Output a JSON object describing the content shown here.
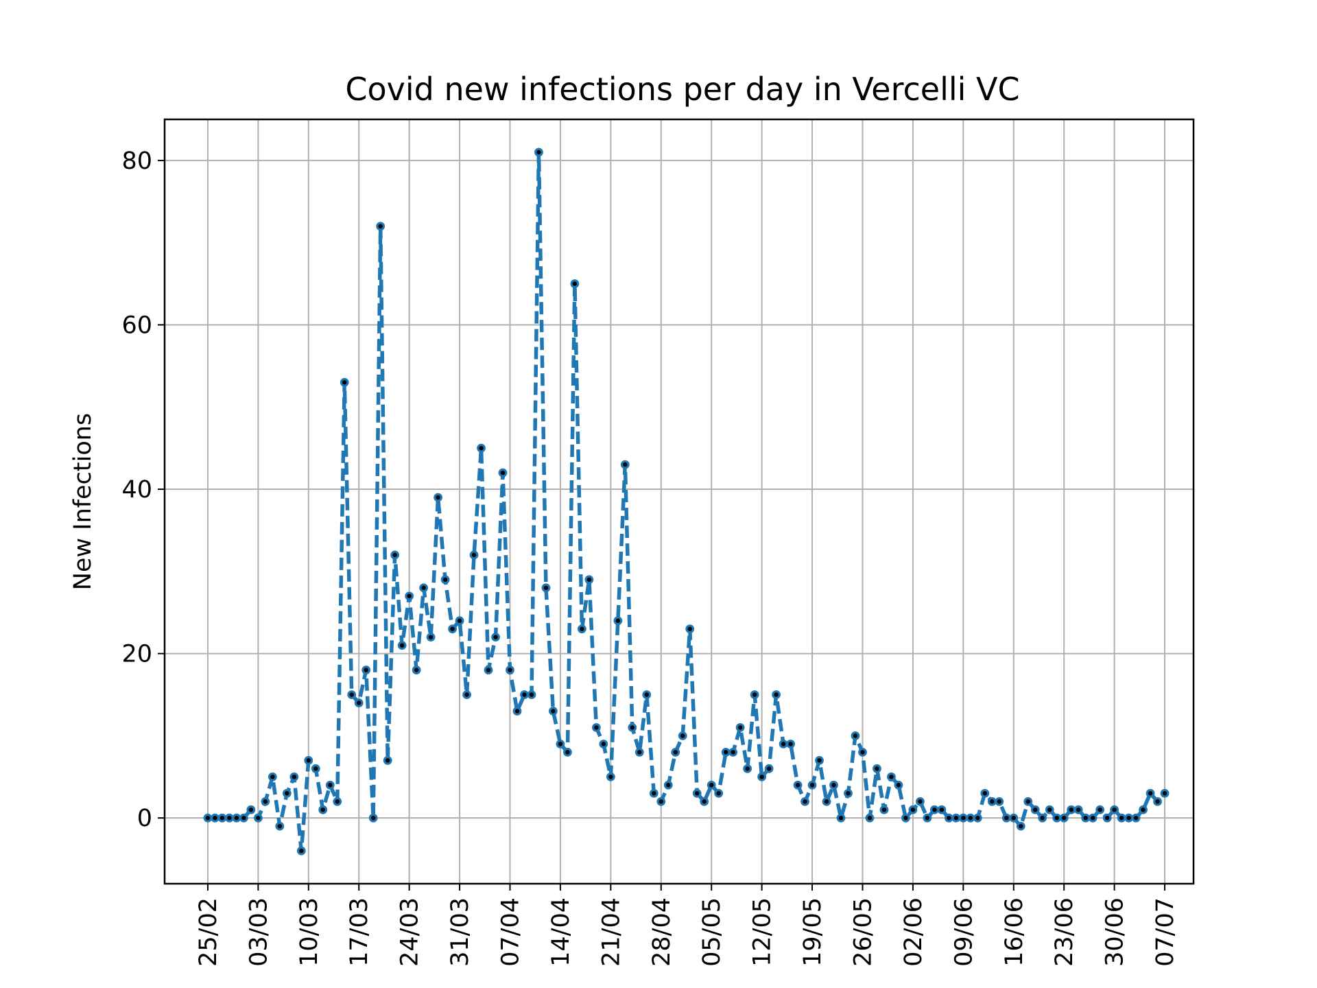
{
  "chart_data": {
    "type": "line",
    "title": "Covid new infections per day in Vercelli VC",
    "xlabel": "",
    "ylabel": "New Infections",
    "ylim": [
      -8,
      85
    ],
    "yticks": [
      0,
      20,
      40,
      60,
      80
    ],
    "xlim": [
      "2020-02-19",
      "2020-07-11"
    ],
    "xticks": [
      {
        "date": "2020-02-25",
        "label": "25/02"
      },
      {
        "date": "2020-03-03",
        "label": "03/03"
      },
      {
        "date": "2020-03-10",
        "label": "10/03"
      },
      {
        "date": "2020-03-17",
        "label": "17/03"
      },
      {
        "date": "2020-03-24",
        "label": "24/03"
      },
      {
        "date": "2020-03-31",
        "label": "31/03"
      },
      {
        "date": "2020-04-07",
        "label": "07/04"
      },
      {
        "date": "2020-04-14",
        "label": "14/04"
      },
      {
        "date": "2020-04-21",
        "label": "21/04"
      },
      {
        "date": "2020-04-28",
        "label": "28/04"
      },
      {
        "date": "2020-05-05",
        "label": "05/05"
      },
      {
        "date": "2020-05-12",
        "label": "12/05"
      },
      {
        "date": "2020-05-19",
        "label": "19/05"
      },
      {
        "date": "2020-05-26",
        "label": "26/05"
      },
      {
        "date": "2020-06-02",
        "label": "02/06"
      },
      {
        "date": "2020-06-09",
        "label": "09/06"
      },
      {
        "date": "2020-06-16",
        "label": "16/06"
      },
      {
        "date": "2020-06-23",
        "label": "23/06"
      },
      {
        "date": "2020-06-30",
        "label": "30/06"
      },
      {
        "date": "2020-07-07",
        "label": "07/07"
      }
    ],
    "grid": true,
    "line_style": "dashed",
    "series_color": "#1f77b4",
    "marker_color": "#000000",
    "series": [
      {
        "x_start": "2020-02-25",
        "x_step_days": 1,
        "values": [
          0,
          0,
          0,
          0,
          0,
          0,
          1,
          0,
          2,
          5,
          -1,
          3,
          5,
          -4,
          7,
          6,
          1,
          4,
          2,
          53,
          15,
          14,
          18,
          0,
          72,
          7,
          32,
          21,
          27,
          18,
          28,
          22,
          39,
          29,
          23,
          24,
          15,
          32,
          45,
          18,
          22,
          42,
          18,
          13,
          15,
          15,
          81,
          28,
          13,
          9,
          8,
          65,
          23,
          29,
          11,
          9,
          5,
          24,
          43,
          11,
          8,
          15,
          3,
          2,
          4,
          8,
          10,
          23,
          3,
          2,
          4,
          3,
          8,
          8,
          11,
          6,
          15,
          5,
          6,
          15,
          9,
          9,
          4,
          2,
          4,
          7,
          2,
          4,
          0,
          3,
          10,
          8,
          0,
          6,
          1,
          5,
          4,
          0,
          1,
          2,
          0,
          1,
          1,
          0,
          0,
          0,
          0,
          0,
          3,
          2,
          2,
          0,
          0,
          -1,
          2,
          1,
          0,
          1,
          0,
          0,
          1,
          1,
          0,
          0,
          1,
          0,
          1,
          0,
          0,
          0,
          1,
          3,
          2,
          3
        ]
      }
    ]
  }
}
